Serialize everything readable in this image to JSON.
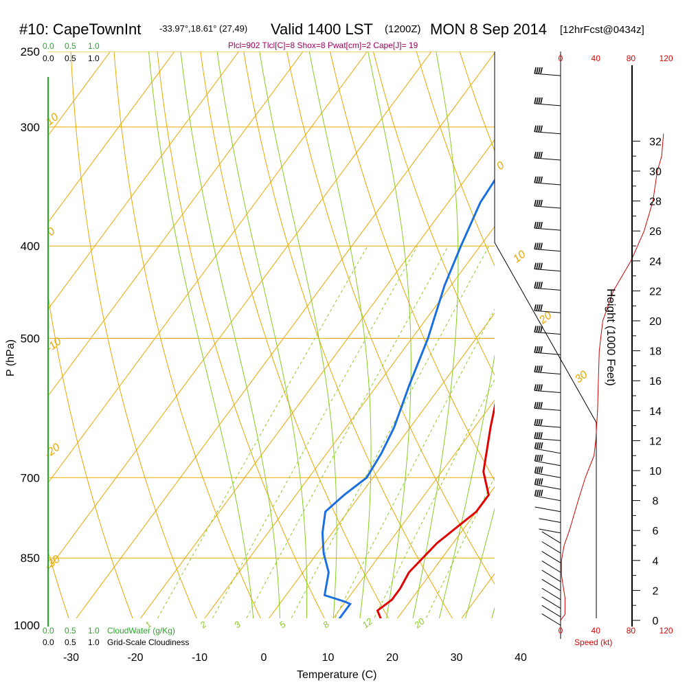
{
  "header": {
    "station": "#10: CapeTownInt",
    "coords": "-33.97°,18.61° (27,49)",
    "valid": "Valid 1400 LST",
    "utc": "(1200Z)",
    "date": "MON 8 Sep 2014",
    "forecast": "[12hrFcst@0434z]"
  },
  "stats_line": "Plcl=902 Tlcl[C]=8 Shox=8 Pwat[cm]=2 Cape[J]= 19",
  "scales": {
    "top_green": [
      "0.0",
      "0.5",
      "1.0"
    ],
    "top_black": [
      "0.0",
      "0.5",
      "1.0"
    ],
    "bottom_green": [
      "0.0",
      "0.5",
      "1.0"
    ],
    "bottom_black": [
      "0.0",
      "0.5",
      "1.0"
    ],
    "cloudwater_label": "CloudWater (g/Kg)",
    "cloudiness_label": "Grid-Scale Cloudiness",
    "speed_label": "Speed (kt)"
  },
  "chart_data": {
    "type": "line",
    "xlabel": "Temperature (C)",
    "ylabel": "P (hPa)",
    "y2label": "Height (1000 Feet)",
    "x_ticks": [
      -30,
      -20,
      -10,
      0,
      10,
      20,
      30,
      40
    ],
    "pressure_ticks": [
      250,
      300,
      400,
      500,
      700,
      850,
      1000
    ],
    "height_ticks": [
      0,
      2,
      4,
      6,
      8,
      10,
      12,
      14,
      16,
      18,
      20,
      22,
      24,
      26,
      28,
      30,
      32
    ],
    "speed_ticks": [
      0,
      40,
      80,
      120
    ],
    "isotherm_labels": [
      "10",
      "0",
      "-10",
      "-20",
      "-30",
      "0",
      "10",
      "20",
      "30"
    ],
    "mixing_ratio_labels": [
      "1",
      "2",
      "3",
      "5",
      "8",
      "12",
      "20"
    ],
    "colors": {
      "temperature": "#e00000",
      "dewpoint": "#1a6fe0",
      "isobar": "#e8a800",
      "isotherm": "#e8a800",
      "dry_adiabat": "#e8a800",
      "moist_adiabat": "#88cc22",
      "mixing_ratio": "#88cc22",
      "cloud_water": "#22aa22",
      "wind_speed": "#cc0000"
    },
    "series": [
      {
        "name": "temperature",
        "points": [
          [
            20,
            1012
          ],
          [
            17.5,
            985
          ],
          [
            16,
            965
          ],
          [
            17,
            940
          ],
          [
            17,
            915
          ],
          [
            16.5,
            880
          ],
          [
            17.5,
            820
          ],
          [
            20,
            760
          ],
          [
            20,
            730
          ],
          [
            16.5,
            690
          ],
          [
            12.5,
            620
          ],
          [
            9,
            560
          ],
          [
            6.5,
            500
          ],
          [
            4.5,
            450
          ],
          [
            3.5,
            400
          ],
          [
            3,
            360
          ],
          [
            2.5,
            330
          ],
          [
            1,
            300
          ],
          [
            -1,
            270
          ]
        ]
      },
      {
        "name": "dewpoint",
        "points": [
          [
            12,
            1008
          ],
          [
            11,
            1000
          ],
          [
            11,
            985
          ],
          [
            11,
            950
          ],
          [
            10,
            945
          ],
          [
            6,
            930
          ],
          [
            4,
            880
          ],
          [
            1,
            840
          ],
          [
            -1.5,
            800
          ],
          [
            -3.5,
            760
          ],
          [
            -2.5,
            730
          ],
          [
            -1,
            700
          ],
          [
            -1.5,
            660
          ],
          [
            -2.5,
            620
          ],
          [
            -5,
            560
          ],
          [
            -7.5,
            500
          ],
          [
            -11,
            440
          ],
          [
            -13,
            400
          ],
          [
            -15,
            360
          ],
          [
            -15.5,
            330
          ],
          [
            -15,
            300
          ],
          [
            -14.5,
            270
          ]
        ]
      },
      {
        "name": "parcel",
        "points": [
          [
            20,
            1012
          ],
          [
            18,
            1000
          ],
          [
            17,
            985
          ]
        ]
      },
      {
        "name": "wind_speed_profile",
        "points": [
          [
            0,
            0
          ],
          [
            5,
            0.4
          ],
          [
            5,
            1.5
          ],
          [
            1,
            3
          ],
          [
            1,
            4
          ],
          [
            4,
            5
          ],
          [
            10,
            6
          ],
          [
            20,
            8
          ],
          [
            28,
            9.5
          ],
          [
            38,
            11
          ],
          [
            40,
            12
          ],
          [
            42,
            14
          ],
          [
            43,
            16
          ],
          [
            44,
            18
          ],
          [
            48,
            20
          ],
          [
            60,
            22
          ],
          [
            80,
            24
          ],
          [
            95,
            26
          ],
          [
            105,
            28
          ],
          [
            110,
            30
          ],
          [
            115,
            31
          ],
          [
            117,
            32.5
          ]
        ]
      }
    ],
    "wind_barbs_hpa": [
      265,
      285,
      305,
      325,
      345,
      365,
      385,
      405,
      425,
      445,
      470,
      495,
      520,
      545,
      570,
      595,
      620,
      640,
      660,
      680,
      700,
      720,
      740,
      760,
      780,
      800,
      820,
      840,
      860,
      880,
      900,
      920,
      940,
      960,
      980,
      1000
    ]
  }
}
